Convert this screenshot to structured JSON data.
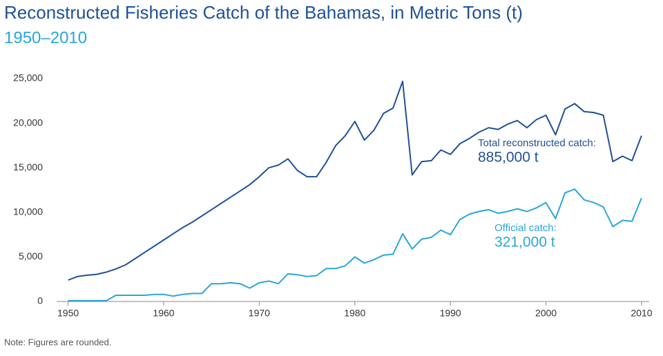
{
  "chart_data": {
    "type": "line",
    "title": "Reconstructed Fisheries Catch of the Bahamas, in Metric Tons (t)",
    "subtitle": "1950–2010",
    "note": "Note: Figures are rounded.",
    "x": [
      1950,
      1951,
      1952,
      1953,
      1954,
      1955,
      1956,
      1957,
      1958,
      1959,
      1960,
      1961,
      1962,
      1963,
      1964,
      1965,
      1966,
      1967,
      1968,
      1969,
      1970,
      1971,
      1972,
      1973,
      1974,
      1975,
      1976,
      1977,
      1978,
      1979,
      1980,
      1981,
      1982,
      1983,
      1984,
      1985,
      1986,
      1987,
      1988,
      1989,
      1990,
      1991,
      1992,
      1993,
      1994,
      1995,
      1996,
      1997,
      1998,
      1999,
      2000,
      2001,
      2002,
      2003,
      2004,
      2005,
      2006,
      2007,
      2008,
      2009,
      2010
    ],
    "series": [
      {
        "name": "Total reconstructed catch",
        "color": "#1f5197",
        "values": [
          2400,
          2800,
          2950,
          3050,
          3300,
          3650,
          4100,
          4800,
          5500,
          6200,
          6900,
          7600,
          8300,
          8900,
          9600,
          10300,
          11000,
          11700,
          12400,
          13100,
          14000,
          15000,
          15300,
          16000,
          14700,
          14000,
          14000,
          15600,
          17500,
          18600,
          20200,
          18100,
          19200,
          21100,
          21700,
          24700,
          14200,
          15700,
          15800,
          17000,
          16500,
          17700,
          18300,
          19000,
          19500,
          19300,
          19900,
          20300,
          19500,
          20400,
          20900,
          18700,
          21600,
          22200,
          21300,
          21200,
          20900,
          15700,
          16300,
          15800,
          18600
        ]
      },
      {
        "name": "Official catch",
        "color": "#27a6da",
        "values": [
          100,
          100,
          100,
          100,
          100,
          700,
          700,
          700,
          700,
          800,
          800,
          600,
          800,
          900,
          900,
          2000,
          2000,
          2100,
          2000,
          1500,
          2100,
          2300,
          2000,
          3100,
          3000,
          2800,
          2900,
          3700,
          3700,
          4000,
          5000,
          4300,
          4700,
          5200,
          5300,
          7600,
          5900,
          7000,
          7200,
          8000,
          7500,
          9200,
          9800,
          10100,
          10300,
          9900,
          10100,
          10400,
          10100,
          10500,
          11100,
          9300,
          12200,
          12600,
          11400,
          11100,
          10600,
          8400,
          9100,
          9000,
          11600
        ]
      }
    ],
    "annotations": [
      {
        "label": "Total reconstructed catch:",
        "value": "885,000 t"
      },
      {
        "label": "Official catch:",
        "value": "321,000 t"
      }
    ],
    "xlim": [
      1948.8,
      2010.8
    ],
    "xticks": [
      1950,
      1960,
      1970,
      1980,
      1990,
      2000,
      2010
    ],
    "ylim": [
      0,
      25000
    ],
    "yticks": [
      0,
      {
        "value": 5000,
        "label": "5,000"
      },
      {
        "value": 10000,
        "label": "10,000"
      },
      {
        "value": 15000,
        "label": "15,000"
      },
      {
        "value": 20000,
        "label": "20,000"
      },
      {
        "value": 25000,
        "label": "25,000"
      }
    ],
    "grid": false
  }
}
